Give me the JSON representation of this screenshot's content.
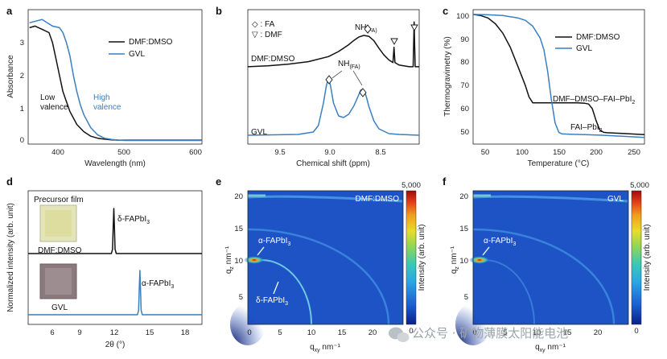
{
  "colors": {
    "black_series": "#111111",
    "blue_series": "#3a7fc1",
    "frame": "#222222"
  },
  "watermark": {
    "text": "公众号 · 矿物薄膜太阳能电池",
    "icon": "wechat-logo"
  },
  "panels": {
    "a": {
      "letter": "a"
    },
    "b": {
      "letter": "b"
    },
    "c": {
      "letter": "c"
    },
    "d": {
      "letter": "d"
    },
    "e": {
      "letter": "e"
    },
    "f": {
      "letter": "f"
    }
  },
  "chart_data": [
    {
      "id": "a",
      "type": "line",
      "xlabel": "Wavelength (nm)",
      "ylabel": "Absorbance",
      "xlim": [
        360,
        610
      ],
      "ylim": [
        -0.1,
        4.0
      ],
      "xticks": [
        "400",
        "500",
        "600"
      ],
      "yticks": [
        "0",
        "1",
        "2",
        "3"
      ],
      "legend": [
        "DMF:DMSO",
        "GVL"
      ],
      "annotations": {
        "low_1": "Low",
        "low_2": "valence",
        "high_1": "High",
        "high_2": "valence"
      },
      "series": [
        {
          "name": "DMF:DMSO",
          "x": [
            362,
            370,
            380,
            390,
            395,
            400,
            405,
            410,
            420,
            430,
            440,
            450,
            460,
            470,
            480,
            490,
            500,
            520,
            550,
            600,
            610
          ],
          "y": [
            3.45,
            3.5,
            3.4,
            3.3,
            3.0,
            2.5,
            2.0,
            1.5,
            0.9,
            0.5,
            0.28,
            0.14,
            0.08,
            0.05,
            0.03,
            0.02,
            0.02,
            0.02,
            0.02,
            0.02,
            0.02
          ]
        },
        {
          "name": "GVL",
          "x": [
            362,
            380,
            395,
            405,
            410,
            415,
            420,
            425,
            430,
            435,
            440,
            450,
            460,
            470,
            480,
            490,
            500,
            520,
            550,
            600,
            610
          ],
          "y": [
            3.6,
            3.7,
            3.5,
            3.45,
            3.3,
            3.0,
            2.6,
            2.0,
            1.5,
            1.1,
            0.8,
            0.4,
            0.18,
            0.08,
            0.04,
            0.02,
            0.01,
            0.01,
            0.01,
            0.01,
            0.01
          ]
        }
      ]
    },
    {
      "id": "b",
      "type": "line",
      "xlabel": "Chemical shift (ppm)",
      "xlim": [
        9.8,
        8.1
      ],
      "xticks": [
        "9.5",
        "9.0",
        "8.5"
      ],
      "legend": [
        "◇ : FA",
        "▽ : DMF"
      ],
      "annotations": {
        "nh_main": "NH",
        "nh_sub": "(FA)",
        "dmso_label": "DMF:DMSO",
        "gvl_label": "GVL"
      },
      "series": [
        {
          "name": "DMF:DMSO",
          "x": [
            9.8,
            9.6,
            9.4,
            9.2,
            9.0,
            8.9,
            8.8,
            8.75,
            8.7,
            8.65,
            8.6,
            8.55,
            8.5,
            8.45,
            8.4,
            8.36,
            8.35,
            8.34,
            8.3,
            8.2,
            8.16,
            8.15,
            8.14,
            8.1
          ],
          "y": [
            0.02,
            0.03,
            0.05,
            0.08,
            0.14,
            0.2,
            0.28,
            0.33,
            0.37,
            0.39,
            0.38,
            0.33,
            0.24,
            0.16,
            0.1,
            0.07,
            0.25,
            0.07,
            0.04,
            0.02,
            0.02,
            0.55,
            0.02,
            0.02
          ]
        },
        {
          "name": "GVL",
          "x": [
            9.8,
            9.3,
            9.15,
            9.1,
            9.05,
            9.02,
            9.0,
            8.98,
            8.95,
            8.9,
            8.85,
            8.8,
            8.75,
            8.7,
            8.68,
            8.66,
            8.64,
            8.62,
            8.6,
            8.55,
            8.5,
            8.4,
            8.3,
            8.1
          ],
          "y": [
            0.0,
            0.01,
            0.04,
            0.12,
            0.4,
            0.62,
            0.7,
            0.62,
            0.4,
            0.24,
            0.22,
            0.26,
            0.36,
            0.5,
            0.56,
            0.57,
            0.54,
            0.46,
            0.36,
            0.18,
            0.08,
            0.02,
            0.01,
            0.0
          ]
        }
      ]
    },
    {
      "id": "c",
      "type": "line",
      "xlabel": "Temperature (°C)",
      "ylabel": "Thermogravimetry (%)",
      "xlim": [
        30,
        260
      ],
      "ylim": [
        45,
        102
      ],
      "xticks": [
        "50",
        "100",
        "150",
        "200",
        "250"
      ],
      "yticks": [
        "50",
        "60",
        "70",
        "80",
        "90",
        "100"
      ],
      "legend": [
        "DMF:DMSO",
        "GVL"
      ],
      "annotations": {
        "dmso_label": "DMF–DMSO–FAI–PbI",
        "dmso_sub": "2",
        "gvl_label": "FAI–PbI",
        "gvl_sub": "2"
      },
      "series": [
        {
          "name": "DMF:DMSO",
          "x": [
            30,
            40,
            50,
            60,
            70,
            80,
            90,
            100,
            105,
            110,
            115,
            130,
            150,
            170,
            180,
            185,
            190,
            195,
            200,
            205,
            210,
            230,
            260
          ],
          "y": [
            100,
            99.5,
            98.5,
            96,
            92,
            86,
            78,
            70,
            65,
            62.5,
            62.5,
            62.5,
            62.5,
            62.5,
            62.3,
            62,
            60,
            55,
            51,
            50,
            49.8,
            49.5,
            49
          ]
        },
        {
          "name": "GVL",
          "x": [
            30,
            50,
            70,
            90,
            100,
            110,
            120,
            125,
            130,
            135,
            140,
            145,
            148,
            150,
            160,
            180,
            200,
            230,
            260
          ],
          "y": [
            100,
            99.8,
            99.5,
            98.5,
            97.5,
            95,
            90,
            85,
            76,
            64,
            54,
            50,
            49.5,
            49.3,
            49.2,
            49,
            48.8,
            48.3,
            47.8
          ]
        }
      ]
    },
    {
      "id": "d",
      "type": "line",
      "xlabel": "2θ (°)",
      "ylabel": "Normalized intensity (arb. unit)",
      "xlim": [
        5,
        19
      ],
      "xticks": [
        "6",
        "9",
        "12",
        "15",
        "18"
      ],
      "annotations": {
        "precursor": "Precursor film",
        "dmso_label": "DMF:DMSO",
        "gvl_label": "GVL",
        "delta_peak": "δ-FAPbI",
        "delta_sub": "3",
        "alpha_peak": "α-FAPbI",
        "alpha_sub": "3"
      },
      "series": [
        {
          "name": "DMF:DMSO",
          "x": [
            5,
            11.7,
            11.8,
            11.85,
            11.9,
            11.95,
            12.0,
            12.1,
            19
          ],
          "y": [
            0,
            0,
            0.1,
            0.6,
            1.0,
            0.6,
            0.1,
            0,
            0
          ]
        },
        {
          "name": "GVL",
          "x": [
            5,
            13.8,
            13.9,
            13.95,
            14.0,
            14.05,
            14.1,
            14.2,
            19
          ],
          "y": [
            0,
            0,
            0.1,
            0.6,
            1.0,
            0.6,
            0.1,
            0,
            0
          ]
        }
      ]
    },
    {
      "id": "e",
      "type": "heatmap",
      "title": "DMF:DMSO",
      "xlabel": "q",
      "xlabel_sub": "xy",
      "xlabel_unit": " nm⁻¹",
      "ylabel": "q",
      "ylabel_sub": "z",
      "ylabel_unit": " nm⁻¹",
      "xticks": [
        "0",
        "5",
        "10",
        "15",
        "20"
      ],
      "yticks": [
        "5",
        "10",
        "15",
        "20"
      ],
      "colorbar": {
        "label": "Intensity (arb. unit)",
        "max": "5,000",
        "min": "0"
      },
      "annotations": {
        "alpha": "α-FAPbI",
        "alpha_sub": "3",
        "delta": "δ-FAPbI",
        "delta_sub": "3"
      }
    },
    {
      "id": "f",
      "type": "heatmap",
      "title": "GVL",
      "xlabel": "q",
      "xlabel_sub": "xy",
      "xlabel_unit": " nm⁻¹",
      "ylabel": "q",
      "ylabel_sub": "z",
      "ylabel_unit": " nm⁻¹",
      "xticks": [
        "0",
        "5",
        "10",
        "15",
        "20"
      ],
      "yticks": [
        "5",
        "10",
        "15",
        "20"
      ],
      "colorbar": {
        "label": "Intensity (arb. unit)",
        "max": "5,000",
        "min": "0"
      },
      "annotations": {
        "alpha": "α-FAPbI",
        "alpha_sub": "3"
      }
    }
  ]
}
